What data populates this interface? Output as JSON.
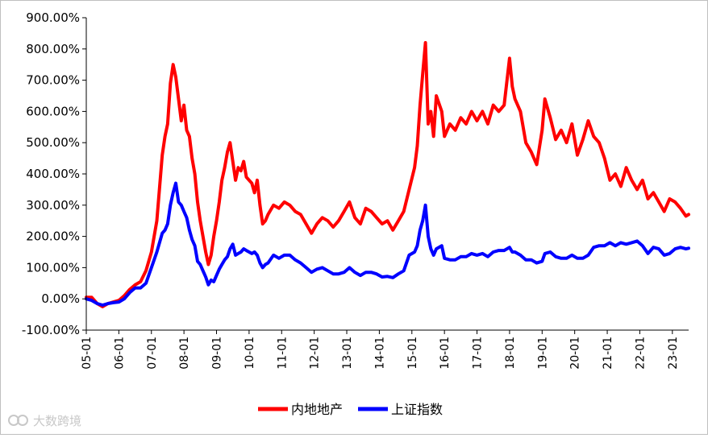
{
  "chart_data": {
    "type": "line",
    "title": "",
    "xlabel": "",
    "ylabel": "",
    "ylim": [
      -100,
      900
    ],
    "x_range": [
      "2005-01",
      "2023-07"
    ],
    "y_ticks": [
      "900.00%",
      "800.00%",
      "700.00%",
      "600.00%",
      "500.00%",
      "400.00%",
      "300.00%",
      "200.00%",
      "100.00%",
      "0.00%",
      "-100.00%"
    ],
    "x_ticks": [
      "05-01",
      "06-01",
      "07-01",
      "08-01",
      "09-01",
      "10-01",
      "11-01",
      "12-01",
      "13-01",
      "14-01",
      "15-01",
      "16-01",
      "17-01",
      "18-01",
      "19-01",
      "20-01",
      "21-01",
      "22-01",
      "23-01"
    ],
    "legend_position": "bottom",
    "grid": false,
    "series": [
      {
        "name": "内地地产",
        "color": "#ff0000",
        "points": [
          [
            "2005-01",
            5
          ],
          [
            "2005-03",
            5
          ],
          [
            "2005-05",
            -15
          ],
          [
            "2005-07",
            -25
          ],
          [
            "2005-09",
            -15
          ],
          [
            "2005-11",
            -10
          ],
          [
            "2006-01",
            -5
          ],
          [
            "2006-03",
            10
          ],
          [
            "2006-05",
            30
          ],
          [
            "2006-07",
            45
          ],
          [
            "2006-09",
            55
          ],
          [
            "2006-11",
            90
          ],
          [
            "2007-01",
            150
          ],
          [
            "2007-03",
            250
          ],
          [
            "2007-05",
            460
          ],
          [
            "2007-06",
            520
          ],
          [
            "2007-07",
            560
          ],
          [
            "2007-08",
            690
          ],
          [
            "2007-09",
            750
          ],
          [
            "2007-10",
            710
          ],
          [
            "2007-11",
            640
          ],
          [
            "2007-12",
            570
          ],
          [
            "2008-01",
            620
          ],
          [
            "2008-02",
            540
          ],
          [
            "2008-03",
            520
          ],
          [
            "2008-04",
            450
          ],
          [
            "2008-05",
            400
          ],
          [
            "2008-06",
            310
          ],
          [
            "2008-07",
            250
          ],
          [
            "2008-08",
            200
          ],
          [
            "2008-09",
            150
          ],
          [
            "2008-10",
            110
          ],
          [
            "2008-11",
            140
          ],
          [
            "2008-12",
            200
          ],
          [
            "2009-01",
            250
          ],
          [
            "2009-02",
            310
          ],
          [
            "2009-03",
            380
          ],
          [
            "2009-04",
            420
          ],
          [
            "2009-05",
            470
          ],
          [
            "2009-06",
            500
          ],
          [
            "2009-07",
            440
          ],
          [
            "2009-08",
            380
          ],
          [
            "2009-09",
            420
          ],
          [
            "2009-10",
            410
          ],
          [
            "2009-11",
            440
          ],
          [
            "2009-12",
            390
          ],
          [
            "2010-01",
            380
          ],
          [
            "2010-02",
            370
          ],
          [
            "2010-03",
            340
          ],
          [
            "2010-04",
            380
          ],
          [
            "2010-05",
            300
          ],
          [
            "2010-06",
            240
          ],
          [
            "2010-07",
            250
          ],
          [
            "2010-08",
            270
          ],
          [
            "2010-10",
            300
          ],
          [
            "2010-12",
            290
          ],
          [
            "2011-02",
            310
          ],
          [
            "2011-04",
            300
          ],
          [
            "2011-06",
            280
          ],
          [
            "2011-08",
            270
          ],
          [
            "2011-10",
            240
          ],
          [
            "2011-12",
            210
          ],
          [
            "2012-02",
            240
          ],
          [
            "2012-04",
            260
          ],
          [
            "2012-06",
            250
          ],
          [
            "2012-08",
            230
          ],
          [
            "2012-10",
            250
          ],
          [
            "2012-12",
            280
          ],
          [
            "2013-02",
            310
          ],
          [
            "2013-04",
            260
          ],
          [
            "2013-06",
            240
          ],
          [
            "2013-08",
            290
          ],
          [
            "2013-10",
            280
          ],
          [
            "2013-12",
            260
          ],
          [
            "2014-02",
            240
          ],
          [
            "2014-04",
            250
          ],
          [
            "2014-06",
            220
          ],
          [
            "2014-08",
            250
          ],
          [
            "2014-10",
            280
          ],
          [
            "2014-12",
            350
          ],
          [
            "2015-02",
            420
          ],
          [
            "2015-03",
            490
          ],
          [
            "2015-04",
            620
          ],
          [
            "2015-05",
            720
          ],
          [
            "2015-06",
            820
          ],
          [
            "2015-07",
            560
          ],
          [
            "2015-08",
            600
          ],
          [
            "2015-09",
            520
          ],
          [
            "2015-10",
            650
          ],
          [
            "2015-12",
            600
          ],
          [
            "2016-01",
            520
          ],
          [
            "2016-03",
            560
          ],
          [
            "2016-05",
            540
          ],
          [
            "2016-07",
            580
          ],
          [
            "2016-09",
            560
          ],
          [
            "2016-11",
            600
          ],
          [
            "2017-01",
            570
          ],
          [
            "2017-03",
            600
          ],
          [
            "2017-05",
            560
          ],
          [
            "2017-07",
            620
          ],
          [
            "2017-09",
            600
          ],
          [
            "2017-11",
            620
          ],
          [
            "2018-01",
            770
          ],
          [
            "2018-02",
            680
          ],
          [
            "2018-03",
            640
          ],
          [
            "2018-05",
            600
          ],
          [
            "2018-07",
            500
          ],
          [
            "2018-09",
            470
          ],
          [
            "2018-11",
            430
          ],
          [
            "2019-01",
            540
          ],
          [
            "2019-02",
            640
          ],
          [
            "2019-04",
            580
          ],
          [
            "2019-06",
            510
          ],
          [
            "2019-08",
            540
          ],
          [
            "2019-10",
            500
          ],
          [
            "2019-12",
            560
          ],
          [
            "2020-02",
            460
          ],
          [
            "2020-04",
            510
          ],
          [
            "2020-06",
            570
          ],
          [
            "2020-08",
            520
          ],
          [
            "2020-10",
            500
          ],
          [
            "2020-12",
            450
          ],
          [
            "2021-02",
            380
          ],
          [
            "2021-04",
            400
          ],
          [
            "2021-06",
            360
          ],
          [
            "2021-08",
            420
          ],
          [
            "2021-10",
            380
          ],
          [
            "2021-12",
            350
          ],
          [
            "2022-02",
            380
          ],
          [
            "2022-04",
            320
          ],
          [
            "2022-06",
            340
          ],
          [
            "2022-08",
            310
          ],
          [
            "2022-10",
            280
          ],
          [
            "2022-12",
            320
          ],
          [
            "2023-02",
            310
          ],
          [
            "2023-04",
            290
          ],
          [
            "2023-06",
            265
          ],
          [
            "2023-07",
            270
          ]
        ]
      },
      {
        "name": "上证指数",
        "color": "#0000ff",
        "points": [
          [
            "2005-01",
            0
          ],
          [
            "2005-03",
            -5
          ],
          [
            "2005-05",
            -15
          ],
          [
            "2005-07",
            -20
          ],
          [
            "2005-09",
            -15
          ],
          [
            "2005-11",
            -12
          ],
          [
            "2006-01",
            -10
          ],
          [
            "2006-03",
            0
          ],
          [
            "2006-05",
            20
          ],
          [
            "2006-07",
            35
          ],
          [
            "2006-09",
            35
          ],
          [
            "2006-11",
            50
          ],
          [
            "2007-01",
            100
          ],
          [
            "2007-03",
            150
          ],
          [
            "2007-05",
            210
          ],
          [
            "2007-06",
            220
          ],
          [
            "2007-07",
            240
          ],
          [
            "2007-08",
            300
          ],
          [
            "2007-09",
            340
          ],
          [
            "2007-10",
            370
          ],
          [
            "2007-11",
            310
          ],
          [
            "2007-12",
            300
          ],
          [
            "2008-01",
            280
          ],
          [
            "2008-02",
            260
          ],
          [
            "2008-03",
            220
          ],
          [
            "2008-04",
            190
          ],
          [
            "2008-05",
            170
          ],
          [
            "2008-06",
            120
          ],
          [
            "2008-07",
            110
          ],
          [
            "2008-08",
            90
          ],
          [
            "2008-09",
            70
          ],
          [
            "2008-10",
            45
          ],
          [
            "2008-11",
            60
          ],
          [
            "2008-12",
            55
          ],
          [
            "2009-01",
            75
          ],
          [
            "2009-02",
            95
          ],
          [
            "2009-03",
            110
          ],
          [
            "2009-04",
            125
          ],
          [
            "2009-05",
            135
          ],
          [
            "2009-06",
            160
          ],
          [
            "2009-07",
            175
          ],
          [
            "2009-08",
            140
          ],
          [
            "2009-09",
            145
          ],
          [
            "2009-10",
            150
          ],
          [
            "2009-11",
            160
          ],
          [
            "2009-12",
            155
          ],
          [
            "2010-01",
            150
          ],
          [
            "2010-02",
            145
          ],
          [
            "2010-03",
            150
          ],
          [
            "2010-04",
            140
          ],
          [
            "2010-05",
            115
          ],
          [
            "2010-06",
            100
          ],
          [
            "2010-07",
            110
          ],
          [
            "2010-08",
            115
          ],
          [
            "2010-10",
            140
          ],
          [
            "2010-12",
            130
          ],
          [
            "2011-02",
            140
          ],
          [
            "2011-04",
            140
          ],
          [
            "2011-06",
            125
          ],
          [
            "2011-08",
            115
          ],
          [
            "2011-10",
            100
          ],
          [
            "2011-12",
            85
          ],
          [
            "2012-02",
            95
          ],
          [
            "2012-04",
            100
          ],
          [
            "2012-06",
            90
          ],
          [
            "2012-08",
            80
          ],
          [
            "2012-10",
            80
          ],
          [
            "2012-12",
            85
          ],
          [
            "2013-02",
            100
          ],
          [
            "2013-04",
            85
          ],
          [
            "2013-06",
            75
          ],
          [
            "2013-08",
            85
          ],
          [
            "2013-10",
            85
          ],
          [
            "2013-12",
            80
          ],
          [
            "2014-02",
            70
          ],
          [
            "2014-04",
            72
          ],
          [
            "2014-06",
            68
          ],
          [
            "2014-08",
            80
          ],
          [
            "2014-10",
            90
          ],
          [
            "2014-12",
            140
          ],
          [
            "2015-02",
            150
          ],
          [
            "2015-03",
            170
          ],
          [
            "2015-04",
            220
          ],
          [
            "2015-05",
            250
          ],
          [
            "2015-06",
            300
          ],
          [
            "2015-07",
            200
          ],
          [
            "2015-08",
            160
          ],
          [
            "2015-09",
            140
          ],
          [
            "2015-10",
            160
          ],
          [
            "2015-12",
            170
          ],
          [
            "2016-01",
            130
          ],
          [
            "2016-03",
            125
          ],
          [
            "2016-05",
            125
          ],
          [
            "2016-07",
            135
          ],
          [
            "2016-09",
            135
          ],
          [
            "2016-11",
            145
          ],
          [
            "2017-01",
            140
          ],
          [
            "2017-03",
            145
          ],
          [
            "2017-05",
            135
          ],
          [
            "2017-07",
            150
          ],
          [
            "2017-09",
            155
          ],
          [
            "2017-11",
            155
          ],
          [
            "2018-01",
            165
          ],
          [
            "2018-02",
            150
          ],
          [
            "2018-03",
            150
          ],
          [
            "2018-05",
            140
          ],
          [
            "2018-07",
            125
          ],
          [
            "2018-09",
            125
          ],
          [
            "2018-11",
            115
          ],
          [
            "2019-01",
            120
          ],
          [
            "2019-02",
            145
          ],
          [
            "2019-04",
            150
          ],
          [
            "2019-06",
            135
          ],
          [
            "2019-08",
            130
          ],
          [
            "2019-10",
            130
          ],
          [
            "2019-12",
            140
          ],
          [
            "2020-02",
            130
          ],
          [
            "2020-04",
            130
          ],
          [
            "2020-06",
            140
          ],
          [
            "2020-08",
            165
          ],
          [
            "2020-10",
            170
          ],
          [
            "2020-12",
            170
          ],
          [
            "2021-02",
            180
          ],
          [
            "2021-04",
            170
          ],
          [
            "2021-06",
            180
          ],
          [
            "2021-08",
            175
          ],
          [
            "2021-10",
            180
          ],
          [
            "2021-12",
            185
          ],
          [
            "2022-02",
            170
          ],
          [
            "2022-04",
            145
          ],
          [
            "2022-06",
            165
          ],
          [
            "2022-08",
            160
          ],
          [
            "2022-10",
            140
          ],
          [
            "2022-12",
            145
          ],
          [
            "2023-02",
            160
          ],
          [
            "2023-04",
            165
          ],
          [
            "2023-06",
            160
          ],
          [
            "2023-07",
            162
          ]
        ]
      }
    ]
  },
  "watermark": {
    "text": "大数跨境"
  }
}
